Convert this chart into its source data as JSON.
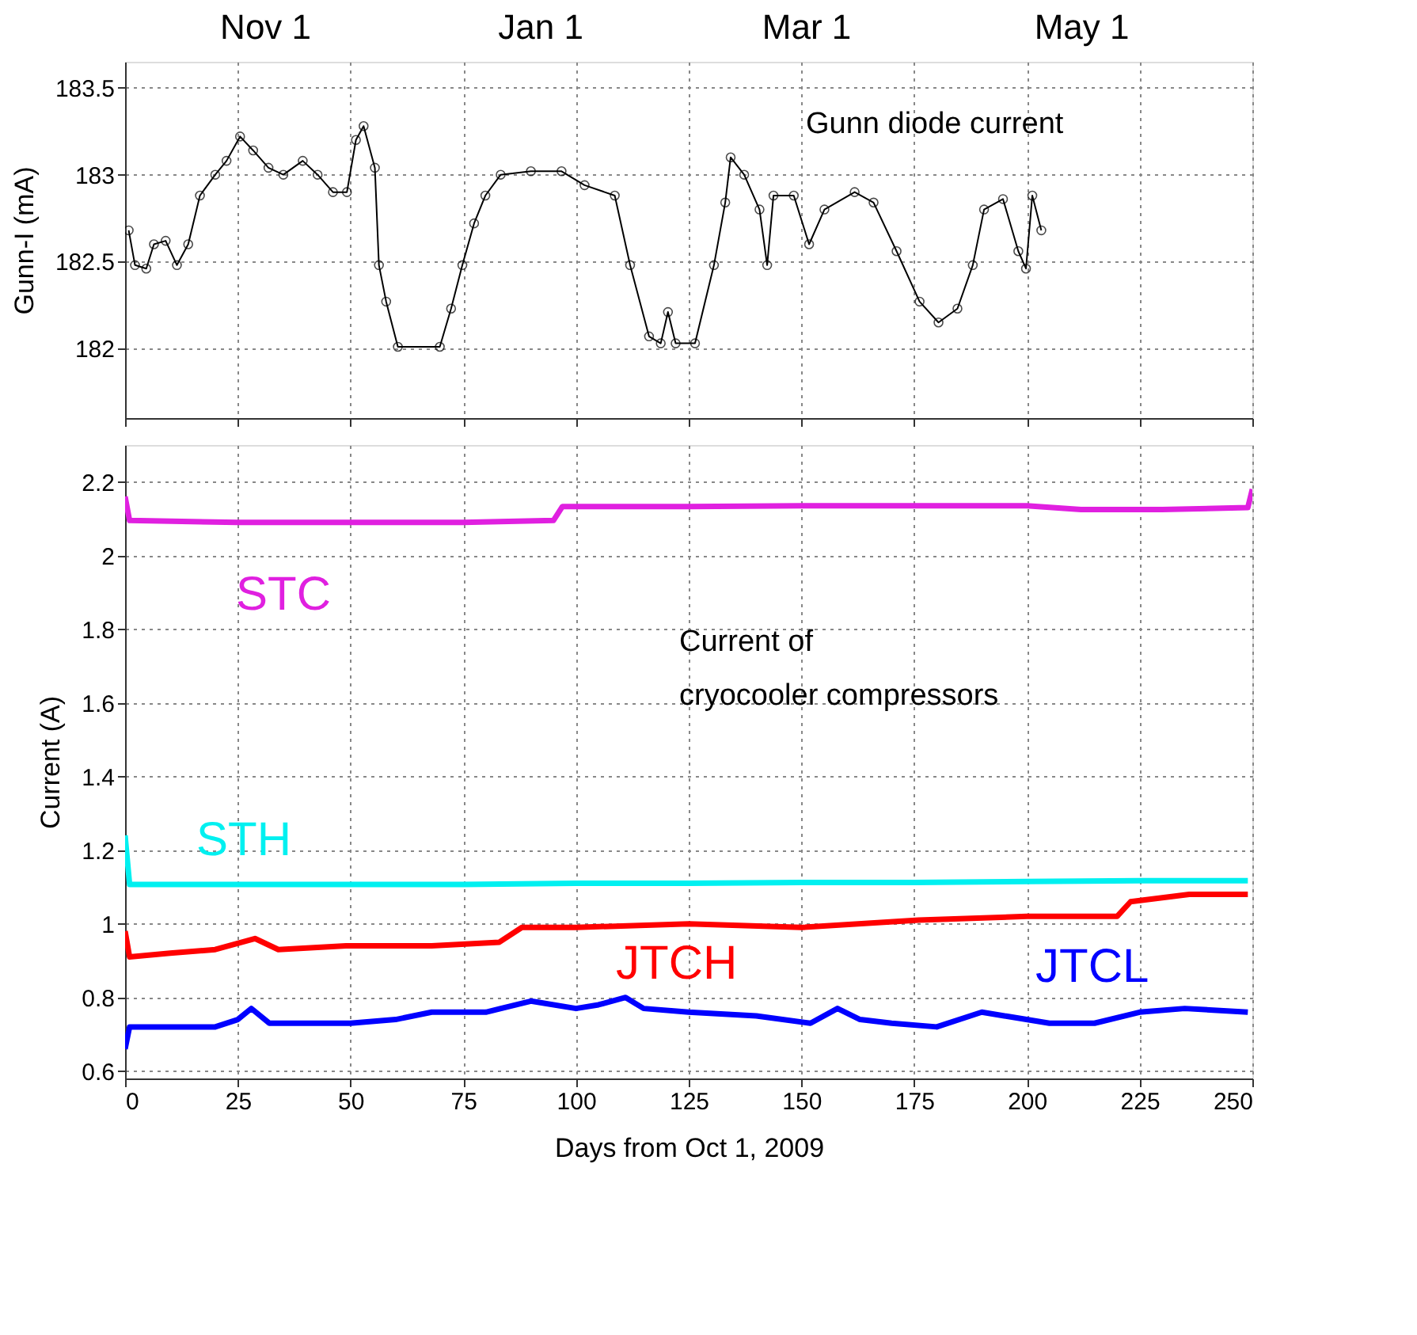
{
  "chart_data": [
    {
      "type": "line",
      "ylabel": "Gunn-I (mA)",
      "annotations": [
        "Gunn diode current"
      ],
      "xlim": [
        0,
        250
      ],
      "xticks": [
        0,
        25,
        50,
        75,
        100,
        125,
        150,
        175,
        200,
        225,
        250
      ],
      "ylim": [
        181.6,
        183.65
      ],
      "yticks": [
        182,
        182.5,
        183,
        183.5
      ],
      "x2lim": [
        "2009-10-01",
        "2010-06-08"
      ],
      "x2ticks": [
        {
          "value": "2009-11-01",
          "label": "Nov 1"
        },
        {
          "value": "2010-01-01",
          "label": "Jan 1"
        },
        {
          "value": "2010-03-01",
          "label": "Mar 1"
        },
        {
          "value": "2010-05-01",
          "label": "May 1"
        }
      ],
      "tick_labels": "y",
      "grid": true,
      "marker": "circle",
      "series": [
        {
          "color": "#000000",
          "x": [
            0.8,
            2.2,
            4.7,
            6.4,
            9,
            11.5,
            14,
            16.6,
            20,
            22.5,
            25.5,
            28.4,
            31.8,
            35.1,
            39.4,
            42.7,
            46.1,
            49.2,
            51.2,
            52.9,
            55.4,
            56.3,
            57.9,
            60.5,
            69.8,
            72.3,
            74.8,
            77.4,
            79.9,
            83.3,
            90,
            96.8,
            101.9,
            108.6,
            112,
            116.2,
            118.8,
            120.4,
            122.1,
            126.4,
            130.6,
            133.1,
            134.3,
            137.3,
            140.7,
            142.4,
            143.8,
            148.3,
            151.7,
            155.1,
            161.8,
            166,
            171.1,
            176.2,
            180.4,
            184.6,
            188,
            190.5,
            194.7,
            198.1,
            199.8,
            201.2,
            203.2
          ],
          "values": [
            182.68,
            182.48,
            182.46,
            182.6,
            182.62,
            182.48,
            182.6,
            182.88,
            183.0,
            183.08,
            183.22,
            183.14,
            183.04,
            183.0,
            183.08,
            183.0,
            182.9,
            182.9,
            183.2,
            183.28,
            183.04,
            182.48,
            182.27,
            182.01,
            182.01,
            182.23,
            182.48,
            182.72,
            182.88,
            183.0,
            183.02,
            183.02,
            182.94,
            182.88,
            182.48,
            182.07,
            182.03,
            182.21,
            182.03,
            182.03,
            182.48,
            182.84,
            183.1,
            183.0,
            182.8,
            182.48,
            182.88,
            182.88,
            182.6,
            182.8,
            182.9,
            182.84,
            182.56,
            182.27,
            182.15,
            182.23,
            182.48,
            182.8,
            182.86,
            182.56,
            182.46,
            182.88,
            182.68
          ]
        }
      ]
    },
    {
      "type": "line",
      "xlabel": "Days from Oct 1, 2009",
      "ylabel": "Current (A)",
      "annotations": [
        "Current of\ncryocooler compressors"
      ],
      "xlim": [
        0,
        250
      ],
      "xticks": [
        0,
        25,
        50,
        75,
        100,
        125,
        150,
        175,
        200,
        225,
        250
      ],
      "ylim": [
        0.58,
        2.3
      ],
      "yticks": [
        0.6,
        0.8,
        1,
        1.2,
        1.4,
        1.6,
        1.8,
        2,
        2.2
      ],
      "grid": true,
      "series": [
        {
          "name": "STC",
          "color": "#e020e0",
          "x": [
            0,
            1,
            25,
            50,
            75,
            95,
            97,
            125,
            150,
            175,
            200,
            212,
            230,
            249,
            250
          ],
          "values": [
            2.16,
            2.095,
            2.09,
            2.09,
            2.09,
            2.095,
            2.133,
            2.133,
            2.135,
            2.135,
            2.135,
            2.125,
            2.125,
            2.13,
            2.18
          ]
        },
        {
          "name": "STH",
          "color": "#00f0f0",
          "x": [
            0,
            1,
            25,
            50,
            75,
            100,
            125,
            150,
            175,
            200,
            225,
            249
          ],
          "values": [
            1.24,
            1.107,
            1.107,
            1.107,
            1.107,
            1.11,
            1.11,
            1.112,
            1.112,
            1.115,
            1.117,
            1.117
          ]
        },
        {
          "name": "JTCH",
          "color": "#ff0000",
          "x": [
            0,
            1,
            10,
            20,
            28.8,
            34,
            49,
            68,
            83,
            88,
            100,
            125,
            150,
            176,
            200,
            220,
            223,
            236,
            249
          ],
          "values": [
            0.98,
            0.91,
            0.92,
            0.93,
            0.96,
            0.93,
            0.94,
            0.94,
            0.95,
            0.99,
            0.99,
            1.0,
            0.99,
            1.01,
            1.02,
            1.02,
            1.06,
            1.08,
            1.08
          ]
        },
        {
          "name": "JTCL",
          "color": "#0000ff",
          "x": [
            0,
            1,
            10,
            20,
            25,
            28,
            32,
            50,
            60,
            68,
            80,
            90,
            100,
            105,
            111,
            115,
            125,
            140,
            152,
            158,
            163,
            170,
            180,
            190,
            195,
            205,
            215,
            225,
            235,
            249
          ],
          "values": [
            0.66,
            0.72,
            0.72,
            0.72,
            0.74,
            0.77,
            0.73,
            0.73,
            0.74,
            0.76,
            0.76,
            0.79,
            0.77,
            0.78,
            0.8,
            0.77,
            0.76,
            0.75,
            0.73,
            0.77,
            0.74,
            0.73,
            0.72,
            0.76,
            0.75,
            0.73,
            0.73,
            0.76,
            0.77,
            0.76
          ]
        }
      ]
    }
  ]
}
